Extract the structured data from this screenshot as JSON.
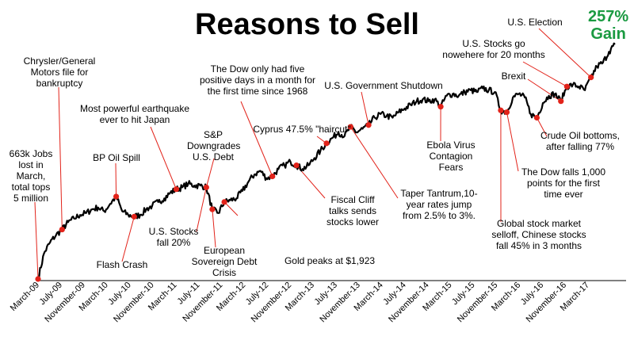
{
  "chart_data": {
    "type": "line",
    "title": "Reasons to Sell",
    "gain_label": "257%\nGain",
    "x_ticks": [
      "March-09",
      "July-09",
      "November-09",
      "March-10",
      "July-10",
      "November-10",
      "March-11",
      "July-11",
      "November-11",
      "March-12",
      "July-12",
      "November-12",
      "March-13",
      "July-13",
      "November-13",
      "March-14",
      "July-14",
      "November-14",
      "March-15",
      "July-15",
      "November-15",
      "March-16",
      "July-16",
      "November-16",
      "March-17"
    ],
    "series": [
      {
        "points": [
          [
            "2009-03",
            0.0
          ],
          [
            "2009-04",
            0.14
          ],
          [
            "2009-05",
            0.2
          ],
          [
            "2009-06",
            0.24
          ],
          [
            "2009-07",
            0.27
          ],
          [
            "2009-08",
            0.31
          ],
          [
            "2009-09",
            0.33
          ],
          [
            "2009-10",
            0.35
          ],
          [
            "2009-11",
            0.36
          ],
          [
            "2009-12",
            0.38
          ],
          [
            "2010-01",
            0.39
          ],
          [
            "2010-02",
            0.37
          ],
          [
            "2010-03",
            0.41
          ],
          [
            "2010-04",
            0.45
          ],
          [
            "2010-05",
            0.37
          ],
          [
            "2010-06",
            0.35
          ],
          [
            "2010-07",
            0.34
          ],
          [
            "2010-08",
            0.35
          ],
          [
            "2010-09",
            0.38
          ],
          [
            "2010-10",
            0.4
          ],
          [
            "2010-11",
            0.42
          ],
          [
            "2010-12",
            0.44
          ],
          [
            "2011-01",
            0.47
          ],
          [
            "2011-02",
            0.49
          ],
          [
            "2011-03",
            0.5
          ],
          [
            "2011-04",
            0.52
          ],
          [
            "2011-05",
            0.51
          ],
          [
            "2011-06",
            0.51
          ],
          [
            "2011-07",
            0.5
          ],
          [
            "2011-08",
            0.38
          ],
          [
            "2011-09",
            0.36
          ],
          [
            "2011-10",
            0.42
          ],
          [
            "2011-11",
            0.43
          ],
          [
            "2011-12",
            0.44
          ],
          [
            "2012-01",
            0.48
          ],
          [
            "2012-02",
            0.53
          ],
          [
            "2012-03",
            0.57
          ],
          [
            "2012-04",
            0.59
          ],
          [
            "2012-05",
            0.55
          ],
          [
            "2012-06",
            0.56
          ],
          [
            "2012-07",
            0.6
          ],
          [
            "2012-08",
            0.62
          ],
          [
            "2012-09",
            0.64
          ],
          [
            "2012-10",
            0.62
          ],
          [
            "2012-11",
            0.6
          ],
          [
            "2012-12",
            0.62
          ],
          [
            "2013-01",
            0.66
          ],
          [
            "2013-02",
            0.7
          ],
          [
            "2013-03",
            0.74
          ],
          [
            "2013-04",
            0.77
          ],
          [
            "2013-05",
            0.8
          ],
          [
            "2013-06",
            0.78
          ],
          [
            "2013-07",
            0.83
          ],
          [
            "2013-08",
            0.8
          ],
          [
            "2013-09",
            0.82
          ],
          [
            "2013-10",
            0.84
          ],
          [
            "2013-11",
            0.88
          ],
          [
            "2013-12",
            0.9
          ],
          [
            "2014-01",
            0.89
          ],
          [
            "2014-02",
            0.88
          ],
          [
            "2014-03",
            0.91
          ],
          [
            "2014-04",
            0.93
          ],
          [
            "2014-05",
            0.95
          ],
          [
            "2014-06",
            0.97
          ],
          [
            "2014-07",
            0.98
          ],
          [
            "2014-08",
            0.97
          ],
          [
            "2014-09",
            0.98
          ],
          [
            "2014-10",
            0.94
          ],
          [
            "2014-11",
            1.0
          ],
          [
            "2014-12",
            1.01
          ],
          [
            "2015-01",
            1.0
          ],
          [
            "2015-02",
            1.02
          ],
          [
            "2015-03",
            1.03
          ],
          [
            "2015-04",
            1.02
          ],
          [
            "2015-05",
            1.04
          ],
          [
            "2015-06",
            1.03
          ],
          [
            "2015-07",
            1.02
          ],
          [
            "2015-08",
            0.92
          ],
          [
            "2015-09",
            0.91
          ],
          [
            "2015-10",
            0.99
          ],
          [
            "2015-11",
            1.01
          ],
          [
            "2015-12",
            0.99
          ],
          [
            "2016-01",
            0.9
          ],
          [
            "2016-02",
            0.88
          ],
          [
            "2016-03",
            0.96
          ],
          [
            "2016-04",
            1.0
          ],
          [
            "2016-05",
            1.01
          ],
          [
            "2016-06",
            0.97
          ],
          [
            "2016-07",
            1.05
          ],
          [
            "2016-08",
            1.06
          ],
          [
            "2016-09",
            1.05
          ],
          [
            "2016-10",
            1.03
          ],
          [
            "2016-11",
            1.1
          ],
          [
            "2016-12",
            1.16
          ],
          [
            "2017-01",
            1.18
          ],
          [
            "2017-02",
            1.24
          ],
          [
            "2017-03",
            1.28
          ]
        ]
      }
    ],
    "markers": [
      "2009-03",
      "2009-07",
      "2010-04",
      "2010-07",
      "2011-02",
      "2011-07",
      "2011-08",
      "2011-10",
      "2012-06",
      "2012-10",
      "2013-03",
      "2013-07",
      "2013-10",
      "2014-10",
      "2015-08",
      "2015-09",
      "2016-02",
      "2016-06",
      "2016-07",
      "2016-11"
    ],
    "annotations": [
      {
        "text": "663k Jobs\nlost in\nMarch,\ntotal tops\n5 million"
      },
      {
        "text": "Chrysler/General\nMotors file for\nbankruptcy"
      },
      {
        "text": "BP Oil Spill"
      },
      {
        "text": "Flash Crash"
      },
      {
        "text": "Most powerful earthquake\never to hit Japan"
      },
      {
        "text": "U.S. Stocks\nfall 20%"
      },
      {
        "text": "S&P\nDowngrades\nU.S. Debt"
      },
      {
        "text": "European\nSovereign Debt\nCrisis"
      },
      {
        "text": "Gold peaks at $1,923"
      },
      {
        "text": "The Dow only had five\npositive days in a month for\nthe first time since 1968"
      },
      {
        "text": "Fiscal Cliff\ntalks sends\nstocks lower"
      },
      {
        "text": "Cyprus 47.5% \"haircut\""
      },
      {
        "text": "Taper Tantrum,10-\nyear rates jump\nfrom 2.5% to 3%."
      },
      {
        "text": "U.S. Government  Shutdown"
      },
      {
        "text": "Ebola Virus\nContagion\nFears"
      },
      {
        "text": "Global stock market\nselloff, Chinese stocks\nfall 45% in 3 months"
      },
      {
        "text": "The Dow falls 1,000\npoints for the first\ntime ever"
      },
      {
        "text": "Crude Oil bottoms,\nafter falling 77%"
      },
      {
        "text": "Brexit"
      },
      {
        "text": "U.S. Stocks go\nnowehere for 20 months"
      },
      {
        "text": "U.S. Election"
      }
    ],
    "colors": {
      "line": "#000000",
      "marker": "#e2231a",
      "callout": "#e2231a",
      "gain": "#1a9a41"
    }
  }
}
